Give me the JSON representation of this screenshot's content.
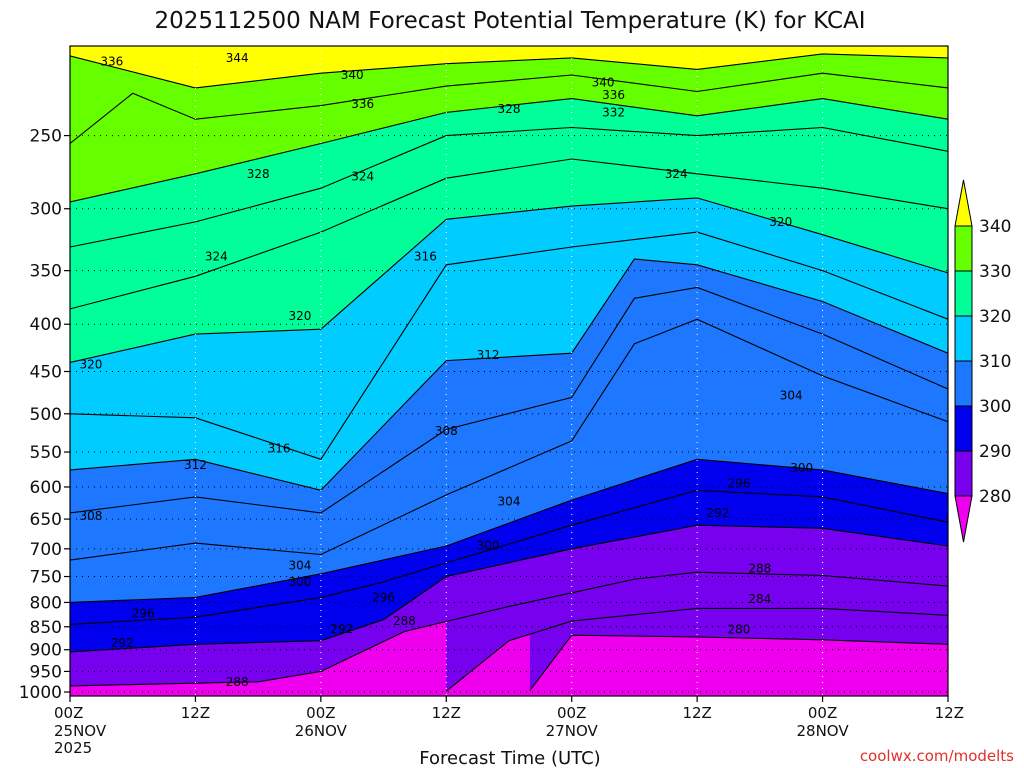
{
  "chart_data": {
    "type": "heatmap",
    "title": "2025112500 NAM Forecast Potential Temperature (K) for KCAI",
    "xlabel": "Forecast Time (UTC)",
    "ylabel": "",
    "credit": "coolwx.com/modelts",
    "y_scale": "log",
    "y_reversed": true,
    "ylim": [
      1010,
      200
    ],
    "yticks": [
      250,
      300,
      350,
      400,
      450,
      500,
      550,
      600,
      650,
      700,
      750,
      800,
      850,
      900,
      950,
      1000
    ],
    "xlim": [
      "2025-11-25 00Z",
      "2025-11-28 12Z"
    ],
    "xticks": [
      {
        "time": "2025-11-25 00Z",
        "hour": "00Z",
        "date": "25NOV",
        "year": "2025"
      },
      {
        "time": "2025-11-25 12Z",
        "hour": "12Z",
        "date": "",
        "year": ""
      },
      {
        "time": "2025-11-26 00Z",
        "hour": "00Z",
        "date": "26NOV",
        "year": ""
      },
      {
        "time": "2025-11-26 12Z",
        "hour": "12Z",
        "date": "",
        "year": ""
      },
      {
        "time": "2025-11-27 00Z",
        "hour": "00Z",
        "date": "27NOV",
        "year": ""
      },
      {
        "time": "2025-11-27 12Z",
        "hour": "12Z",
        "date": "",
        "year": ""
      },
      {
        "time": "2025-11-28 00Z",
        "hour": "00Z",
        "date": "28NOV",
        "year": ""
      },
      {
        "time": "2025-11-28 12Z",
        "hour": "12Z",
        "date": "",
        "year": ""
      }
    ],
    "grid": true,
    "colorbar": {
      "placement": "right",
      "ticks": [
        "340",
        "330",
        "320",
        "310",
        "300",
        "290",
        "280"
      ],
      "bands": [
        {
          "min": 340,
          "max": null,
          "color": "#ffff00"
        },
        {
          "min": 330,
          "max": 340,
          "color": "#66ff00"
        },
        {
          "min": 320,
          "max": 330,
          "color": "#00ff99"
        },
        {
          "min": 310,
          "max": 320,
          "color": "#00ccff"
        },
        {
          "min": 300,
          "max": 310,
          "color": "#1e78ff"
        },
        {
          "min": 290,
          "max": 300,
          "color": "#0000ee"
        },
        {
          "min": 280,
          "max": 290,
          "color": "#7700ee"
        },
        {
          "min": null,
          "max": 280,
          "color": "#ee00ee"
        }
      ]
    },
    "contour_interval": 2,
    "surface_color": "#a0522d",
    "isentropes": [
      {
        "theta": 280,
        "label": "280",
        "points": [
          [
            "2025-11-26 20Z",
            996
          ],
          [
            "2025-11-27 00Z",
            868
          ],
          [
            "2025-11-27 12Z",
            872
          ],
          [
            "2025-11-28 00Z",
            878
          ],
          [
            "2025-11-28 12Z",
            888
          ]
        ]
      },
      {
        "theta": 284,
        "label": "284",
        "points": [
          [
            "2025-11-26 12Z",
            998
          ],
          [
            "2025-11-26 18Z",
            880
          ],
          [
            "2025-11-27 00Z",
            838
          ],
          [
            "2025-11-27 12Z",
            812
          ],
          [
            "2025-11-28 00Z",
            812
          ],
          [
            "2025-11-28 12Z",
            826
          ]
        ]
      },
      {
        "theta": 288,
        "label": "288",
        "points": [
          [
            "2025-11-25 00Z",
            985
          ],
          [
            "2025-11-25 18Z",
            975
          ],
          [
            "2025-11-26 00Z",
            950
          ],
          [
            "2025-11-26 08Z",
            860
          ],
          [
            "2025-11-26 18Z",
            808
          ],
          [
            "2025-11-27 06Z",
            755
          ],
          [
            "2025-11-27 12Z",
            742
          ],
          [
            "2025-11-28 00Z",
            748
          ],
          [
            "2025-11-28 12Z",
            768
          ]
        ]
      },
      {
        "theta": 292,
        "label": "292",
        "points": [
          [
            "2025-11-25 00Z",
            905
          ],
          [
            "2025-11-25 12Z",
            888
          ],
          [
            "2025-11-26 00Z",
            880
          ],
          [
            "2025-11-26 06Z",
            835
          ],
          [
            "2025-11-26 12Z",
            750
          ],
          [
            "2025-11-27 00Z",
            700
          ],
          [
            "2025-11-27 12Z",
            660
          ],
          [
            "2025-11-28 00Z",
            665
          ],
          [
            "2025-11-28 12Z",
            695
          ]
        ]
      },
      {
        "theta": 296,
        "label": "296",
        "points": [
          [
            "2025-11-25 00Z",
            845
          ],
          [
            "2025-11-25 12Z",
            830
          ],
          [
            "2025-11-26 00Z",
            790
          ],
          [
            "2025-11-26 06Z",
            760
          ],
          [
            "2025-11-26 12Z",
            725
          ],
          [
            "2025-11-27 00Z",
            660
          ],
          [
            "2025-11-27 12Z",
            605
          ],
          [
            "2025-11-28 00Z",
            615
          ],
          [
            "2025-11-28 12Z",
            655
          ]
        ]
      },
      {
        "theta": 300,
        "label": "300",
        "points": [
          [
            "2025-11-25 00Z",
            800
          ],
          [
            "2025-11-25 12Z",
            790
          ],
          [
            "2025-11-26 00Z",
            745
          ],
          [
            "2025-11-26 12Z",
            695
          ],
          [
            "2025-11-27 00Z",
            620
          ],
          [
            "2025-11-27 12Z",
            560
          ],
          [
            "2025-11-28 00Z",
            575
          ],
          [
            "2025-11-28 12Z",
            610
          ]
        ]
      },
      {
        "theta": 304,
        "label": "304",
        "points": [
          [
            "2025-11-25 00Z",
            720
          ],
          [
            "2025-11-25 12Z",
            690
          ],
          [
            "2025-11-26 00Z",
            710
          ],
          [
            "2025-11-26 12Z",
            612
          ],
          [
            "2025-11-27 00Z",
            535
          ],
          [
            "2025-11-27 06Z",
            420
          ],
          [
            "2025-11-27 12Z",
            395
          ],
          [
            "2025-11-28 00Z",
            455
          ],
          [
            "2025-11-28 12Z",
            510
          ]
        ]
      },
      {
        "theta": 308,
        "label": "308",
        "points": [
          [
            "2025-11-25 00Z",
            640
          ],
          [
            "2025-11-25 12Z",
            615
          ],
          [
            "2025-11-26 00Z",
            640
          ],
          [
            "2025-11-26 12Z",
            520
          ],
          [
            "2025-11-27 00Z",
            480
          ],
          [
            "2025-11-27 06Z",
            375
          ],
          [
            "2025-11-27 12Z",
            365
          ],
          [
            "2025-11-28 00Z",
            410
          ],
          [
            "2025-11-28 12Z",
            470
          ]
        ]
      },
      {
        "theta": 312,
        "label": "312",
        "points": [
          [
            "2025-11-25 00Z",
            575
          ],
          [
            "2025-11-25 12Z",
            560
          ],
          [
            "2025-11-26 00Z",
            605
          ],
          [
            "2025-11-26 12Z",
            438
          ],
          [
            "2025-11-27 00Z",
            430
          ],
          [
            "2025-11-27 06Z",
            340
          ],
          [
            "2025-11-27 12Z",
            345
          ],
          [
            "2025-11-28 00Z",
            378
          ],
          [
            "2025-11-28 12Z",
            430
          ]
        ]
      },
      {
        "theta": 316,
        "label": "316",
        "points": [
          [
            "2025-11-25 00Z",
            500
          ],
          [
            "2025-11-25 12Z",
            505
          ],
          [
            "2025-11-26 00Z",
            560
          ],
          [
            "2025-11-26 12Z",
            345
          ],
          [
            "2025-11-27 00Z",
            330
          ],
          [
            "2025-11-27 12Z",
            318
          ],
          [
            "2025-11-28 00Z",
            350
          ],
          [
            "2025-11-28 12Z",
            395
          ]
        ]
      },
      {
        "theta": 320,
        "label": "320",
        "points": [
          [
            "2025-11-25 00Z",
            440
          ],
          [
            "2025-11-25 12Z",
            410
          ],
          [
            "2025-11-26 00Z",
            405
          ],
          [
            "2025-11-26 12Z",
            308
          ],
          [
            "2025-11-27 00Z",
            298
          ],
          [
            "2025-11-27 12Z",
            292
          ],
          [
            "2025-11-28 00Z",
            320
          ],
          [
            "2025-11-28 12Z",
            352
          ]
        ]
      },
      {
        "theta": 324,
        "label": "324",
        "points": [
          [
            "2025-11-25 00Z",
            385
          ],
          [
            "2025-11-25 12Z",
            355
          ],
          [
            "2025-11-26 00Z",
            318
          ],
          [
            "2025-11-26 12Z",
            278
          ],
          [
            "2025-11-27 00Z",
            265
          ],
          [
            "2025-11-27 12Z",
            275
          ],
          [
            "2025-11-28 00Z",
            285
          ],
          [
            "2025-11-28 12Z",
            300
          ]
        ]
      },
      {
        "theta": 328,
        "label": "328",
        "points": [
          [
            "2025-11-25 00Z",
            330
          ],
          [
            "2025-11-25 12Z",
            310
          ],
          [
            "2025-11-26 00Z",
            285
          ],
          [
            "2025-11-26 12Z",
            250
          ],
          [
            "2025-11-27 00Z",
            245
          ],
          [
            "2025-11-27 12Z",
            250
          ],
          [
            "2025-11-28 00Z",
            245
          ],
          [
            "2025-11-28 12Z",
            260
          ]
        ]
      },
      {
        "theta": 332,
        "label": "332",
        "points": [
          [
            "2025-11-25 00Z",
            295
          ],
          [
            "2025-11-25 12Z",
            275
          ],
          [
            "2025-11-26 00Z",
            255
          ],
          [
            "2025-11-26 12Z",
            236
          ],
          [
            "2025-11-27 00Z",
            228
          ],
          [
            "2025-11-27 12Z",
            238
          ],
          [
            "2025-11-28 00Z",
            228
          ],
          [
            "2025-11-28 12Z",
            240
          ]
        ]
      },
      {
        "theta": 336,
        "label": "336",
        "points": [
          [
            "2025-11-25 00Z",
            255
          ],
          [
            "2025-11-25 06Z",
            225
          ],
          [
            "2025-11-25 12Z",
            240
          ],
          [
            "2025-11-26 00Z",
            232
          ],
          [
            "2025-11-26 12Z",
            221
          ],
          [
            "2025-11-27 00Z",
            215
          ],
          [
            "2025-11-27 12Z",
            224
          ],
          [
            "2025-11-28 00Z",
            214
          ],
          [
            "2025-11-28 12Z",
            222
          ]
        ]
      },
      {
        "theta": 340,
        "label": "340",
        "points": [
          [
            "2025-11-25 00Z",
            205
          ],
          [
            "2025-11-25 12Z",
            222
          ],
          [
            "2025-11-26 00Z",
            214
          ],
          [
            "2025-11-26 12Z",
            209
          ],
          [
            "2025-11-27 00Z",
            206
          ],
          [
            "2025-11-27 12Z",
            212
          ],
          [
            "2025-11-28 00Z",
            204
          ],
          [
            "2025-11-28 12Z",
            206
          ]
        ]
      }
    ],
    "contour_labels": [
      {
        "text": "344",
        "time": "2025-11-25 16Z",
        "p": 206
      },
      {
        "text": "336",
        "time": "2025-11-25 04Z",
        "p": 208
      },
      {
        "text": "340",
        "time": "2025-11-26 03Z",
        "p": 215
      },
      {
        "text": "336",
        "time": "2025-11-26 04Z",
        "p": 231
      },
      {
        "text": "328",
        "time": "2025-11-26 18Z",
        "p": 234
      },
      {
        "text": "340",
        "time": "2025-11-27 03Z",
        "p": 219
      },
      {
        "text": "336",
        "time": "2025-11-27 04Z",
        "p": 226
      },
      {
        "text": "332",
        "time": "2025-11-27 04Z",
        "p": 236
      },
      {
        "text": "328",
        "time": "2025-11-25 18Z",
        "p": 275
      },
      {
        "text": "324",
        "time": "2025-11-26 04Z",
        "p": 277
      },
      {
        "text": "324",
        "time": "2025-11-27 10Z",
        "p": 275
      },
      {
        "text": "320",
        "time": "2025-11-27 20Z",
        "p": 310
      },
      {
        "text": "324",
        "time": "2025-11-25 14Z",
        "p": 338
      },
      {
        "text": "316",
        "time": "2025-11-26 10Z",
        "p": 338
      },
      {
        "text": "320",
        "time": "2025-11-25 22Z",
        "p": 392
      },
      {
        "text": "312",
        "time": "2025-11-26 16Z",
        "p": 432
      },
      {
        "text": "320",
        "time": "2025-11-25 02Z",
        "p": 442
      },
      {
        "text": "304",
        "time": "2025-11-27 21Z",
        "p": 478
      },
      {
        "text": "308",
        "time": "2025-11-26 12Z",
        "p": 522
      },
      {
        "text": "316",
        "time": "2025-11-25 20Z",
        "p": 545
      },
      {
        "text": "312",
        "time": "2025-11-25 12Z",
        "p": 568
      },
      {
        "text": "300",
        "time": "2025-11-27 22Z",
        "p": 572
      },
      {
        "text": "296",
        "time": "2025-11-27 16Z",
        "p": 595
      },
      {
        "text": "304",
        "time": "2025-11-26 18Z",
        "p": 622
      },
      {
        "text": "292",
        "time": "2025-11-27 14Z",
        "p": 640
      },
      {
        "text": "308",
        "time": "2025-11-25 02Z",
        "p": 645
      },
      {
        "text": "300",
        "time": "2025-11-26 16Z",
        "p": 694
      },
      {
        "text": "304",
        "time": "2025-11-25 22Z",
        "p": 730
      },
      {
        "text": "288",
        "time": "2025-11-27 18Z",
        "p": 735
      },
      {
        "text": "300",
        "time": "2025-11-25 22Z",
        "p": 760
      },
      {
        "text": "296",
        "time": "2025-11-26 06Z",
        "p": 790
      },
      {
        "text": "284",
        "time": "2025-11-27 18Z",
        "p": 793
      },
      {
        "text": "296",
        "time": "2025-11-25 07Z",
        "p": 822
      },
      {
        "text": "288",
        "time": "2025-11-26 08Z",
        "p": 838
      },
      {
        "text": "292",
        "time": "2025-11-26 02Z",
        "p": 855
      },
      {
        "text": "280",
        "time": "2025-11-27 16Z",
        "p": 856
      },
      {
        "text": "292",
        "time": "2025-11-25 05Z",
        "p": 885
      },
      {
        "text": "288",
        "time": "2025-11-25 16Z",
        "p": 975
      }
    ]
  }
}
